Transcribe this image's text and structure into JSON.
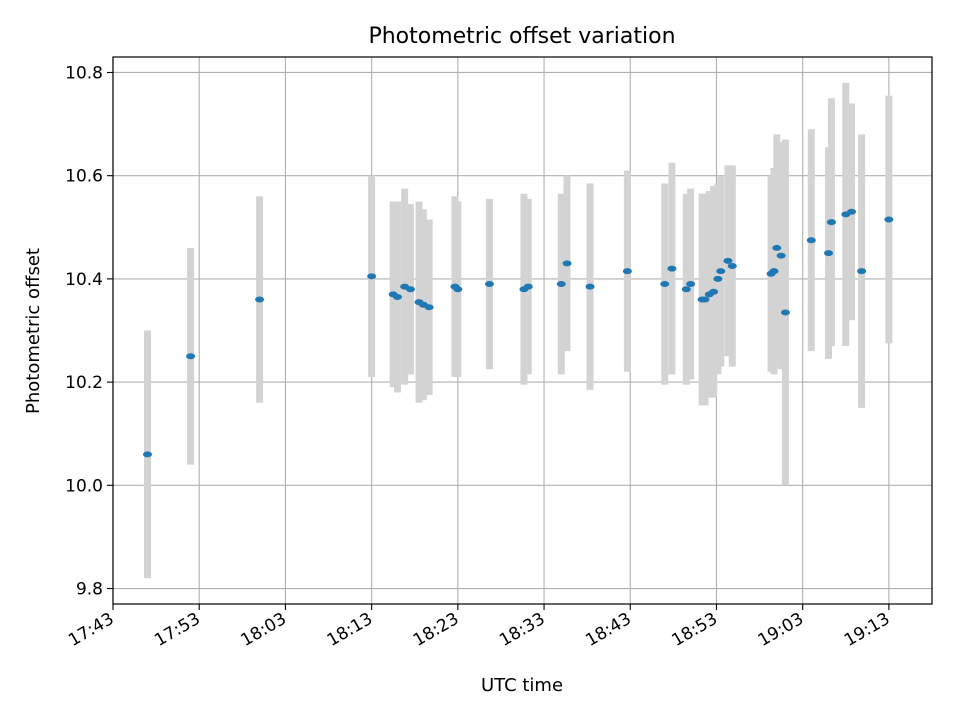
{
  "chart_data": {
    "type": "scatter",
    "title": "Photometric offset variation",
    "xlabel": "UTC time",
    "ylabel": "Photometric offset",
    "x_ticks": [
      "17:43",
      "17:53",
      "18:03",
      "18:13",
      "18:23",
      "18:33",
      "18:43",
      "18:53",
      "19:03",
      "19:13"
    ],
    "y_ticks": [
      "9.8",
      "10.0",
      "10.2",
      "10.4",
      "10.6",
      "10.8"
    ],
    "xlim": [
      "17:43",
      "19:18"
    ],
    "ylim": [
      9.77,
      10.83
    ],
    "grid": true,
    "colors": {
      "marker": "#1f77b4",
      "errorbar": "#d3d3d3",
      "grid": "#b0b0b0"
    },
    "series": [
      {
        "points": [
          {
            "x": "17:47",
            "y": 10.06,
            "err": 0.24
          },
          {
            "x": "17:52",
            "y": 10.25,
            "err": 0.21
          },
          {
            "x": "18:00",
            "y": 10.36,
            "err": 0.2
          },
          {
            "x": "18:13",
            "y": 10.405,
            "err": 0.195
          },
          {
            "x": "18:15:30",
            "y": 10.37,
            "err": 0.18
          },
          {
            "x": "18:16",
            "y": 10.365,
            "err": 0.185
          },
          {
            "x": "18:16:50",
            "y": 10.385,
            "err": 0.19
          },
          {
            "x": "18:17:30",
            "y": 10.38,
            "err": 0.165
          },
          {
            "x": "18:18:30",
            "y": 10.355,
            "err": 0.195
          },
          {
            "x": "18:19",
            "y": 10.35,
            "err": 0.185
          },
          {
            "x": "18:19:40",
            "y": 10.345,
            "err": 0.17
          },
          {
            "x": "18:22:40",
            "y": 10.385,
            "err": 0.175
          },
          {
            "x": "18:23",
            "y": 10.38,
            "err": 0.17
          },
          {
            "x": "18:26:40",
            "y": 10.39,
            "err": 0.165
          },
          {
            "x": "18:30:40",
            "y": 10.38,
            "err": 0.185
          },
          {
            "x": "18:31:10",
            "y": 10.385,
            "err": 0.17
          },
          {
            "x": "18:35",
            "y": 10.39,
            "err": 0.175
          },
          {
            "x": "18:35:40",
            "y": 10.43,
            "err": 0.17
          },
          {
            "x": "18:38:20",
            "y": 10.385,
            "err": 0.2
          },
          {
            "x": "18:42:40",
            "y": 10.415,
            "err": 0.195
          },
          {
            "x": "18:47",
            "y": 10.39,
            "err": 0.195
          },
          {
            "x": "18:47:50",
            "y": 10.42,
            "err": 0.205
          },
          {
            "x": "18:49:30",
            "y": 10.38,
            "err": 0.185
          },
          {
            "x": "18:50",
            "y": 10.39,
            "err": 0.185
          },
          {
            "x": "18:51:20",
            "y": 10.36,
            "err": 0.205
          },
          {
            "x": "18:51:40",
            "y": 10.36,
            "err": 0.205
          },
          {
            "x": "18:52:10",
            "y": 10.37,
            "err": 0.2
          },
          {
            "x": "18:52:40",
            "y": 10.375,
            "err": 0.205
          },
          {
            "x": "18:53:10",
            "y": 10.4,
            "err": 0.185
          },
          {
            "x": "18:53:30",
            "y": 10.415,
            "err": 0.185
          },
          {
            "x": "18:54:20",
            "y": 10.435,
            "err": 0.185
          },
          {
            "x": "18:54:50",
            "y": 10.425,
            "err": 0.195
          },
          {
            "x": "18:59:20",
            "y": 10.41,
            "err": 0.19
          },
          {
            "x": "18:59:40",
            "y": 10.415,
            "err": 0.2
          },
          {
            "x": "19:00",
            "y": 10.46,
            "err": 0.22
          },
          {
            "x": "19:00:30",
            "y": 10.445,
            "err": 0.22
          },
          {
            "x": "19:01",
            "y": 10.335,
            "err": 0.335
          },
          {
            "x": "19:04",
            "y": 10.475,
            "err": 0.215
          },
          {
            "x": "19:06",
            "y": 10.45,
            "err": 0.205
          },
          {
            "x": "19:06:20",
            "y": 10.51,
            "err": 0.24
          },
          {
            "x": "19:08",
            "y": 10.525,
            "err": 0.255
          },
          {
            "x": "19:08:40",
            "y": 10.53,
            "err": 0.21
          },
          {
            "x": "19:09:50",
            "y": 10.415,
            "err": 0.265
          },
          {
            "x": "19:13",
            "y": 10.515,
            "err": 0.24
          }
        ]
      }
    ]
  }
}
